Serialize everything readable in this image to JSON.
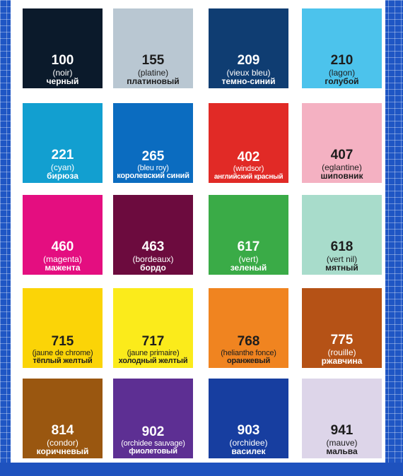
{
  "swatches": [
    {
      "code": "100",
      "fr": "(noir)",
      "ru": "черный",
      "color": "#0b1a2b",
      "text": "light"
    },
    {
      "code": "155",
      "fr": "(platine)",
      "ru": "платиновый",
      "color": "#b9c7d2",
      "text": "dark"
    },
    {
      "code": "209",
      "fr": "(vieux bleu)",
      "ru": "темно-синий",
      "color": "#0f3d72",
      "text": "light"
    },
    {
      "code": "210",
      "fr": "(lagon)",
      "ru": "голубой",
      "color": "#4cc3ec",
      "text": "dark"
    },
    {
      "code": "221",
      "fr": "(cyan)",
      "ru": "бирюза",
      "color": "#129fd0",
      "text": "light"
    },
    {
      "code": "265",
      "fr": "(bleu roy)",
      "ru": "королевский синий",
      "color": "#0b6cc0",
      "text": "light"
    },
    {
      "code": "402",
      "fr": "(windsor)",
      "ru": "английский красный",
      "color": "#e12a26",
      "text": "light"
    },
    {
      "code": "407",
      "fr": "(eglantine)",
      "ru": "шиповник",
      "color": "#f4b1c2",
      "text": "dark"
    },
    {
      "code": "460",
      "fr": "(magenta)",
      "ru": "мажента",
      "color": "#e40e80",
      "text": "light"
    },
    {
      "code": "463",
      "fr": "(bordeaux)",
      "ru": "бордо",
      "color": "#6c0b3e",
      "text": "light"
    },
    {
      "code": "617",
      "fr": "(vert)",
      "ru": "зеленый",
      "color": "#3aab47",
      "text": "light"
    },
    {
      "code": "618",
      "fr": "(vert nil)",
      "ru": "мятный",
      "color": "#a8dccb",
      "text": "dark"
    },
    {
      "code": "715",
      "fr": "(jaune de chrome)",
      "ru": "тёплый желтый",
      "color": "#fbd407",
      "text": "dark"
    },
    {
      "code": "717",
      "fr": "(jaune primaire)",
      "ru": "холодный желтый",
      "color": "#fbeb1b",
      "text": "dark"
    },
    {
      "code": "768",
      "fr": "(helianthe fonce)",
      "ru": "оранжевый",
      "color": "#f08420",
      "text": "dark"
    },
    {
      "code": "775",
      "fr": "(rouille)",
      "ru": "ржавчина",
      "color": "#b55216",
      "text": "light"
    },
    {
      "code": "814",
      "fr": "(condor)",
      "ru": "коричневый",
      "color": "#9a5710",
      "text": "light"
    },
    {
      "code": "902",
      "fr": "(orchidee sauvage)",
      "ru": "фиолетовый",
      "color": "#5d2f93",
      "text": "light"
    },
    {
      "code": "903",
      "fr": "(orchidee)",
      "ru": "василек",
      "color": "#173ea0",
      "text": "light"
    },
    {
      "code": "941",
      "fr": "(mauve)",
      "ru": "мальва",
      "color": "#ddd5e9",
      "text": "dark"
    }
  ],
  "colors": {
    "background": "#1f56c4",
    "panel": "#ffffff"
  }
}
